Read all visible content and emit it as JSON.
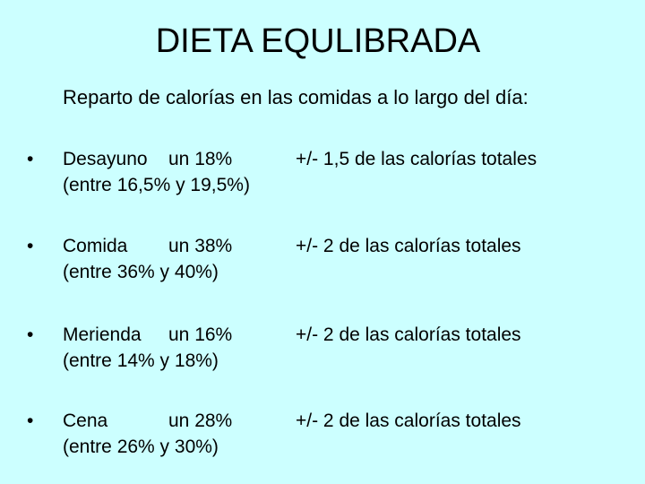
{
  "slide": {
    "title": "DIETA EQULIBRADA",
    "subtitle": "Reparto de calorías en las comidas a lo largo del día:",
    "background_color": "#ccffff",
    "bullet_symbol": "•",
    "items": [
      {
        "meal": "Desayuno",
        "percent": "un 18%",
        "tolerance": "+/- 1,5 de las calorías totales",
        "range": "(entre 16,5% y 19,5%)"
      },
      {
        "meal": "Comida",
        "percent": "un 38%",
        "tolerance": "+/- 2 de las calorías totales",
        "range": "(entre 36% y 40%)"
      },
      {
        "meal": "Merienda",
        "percent": "un 16%",
        "tolerance": "+/- 2 de las calorías totales",
        "range": "(entre 14% y 18%)"
      },
      {
        "meal": "Cena",
        "percent": "un 28%",
        "tolerance": "+/- 2 de las calorías totales",
        "range": "(entre 26% y 30%)"
      }
    ]
  }
}
